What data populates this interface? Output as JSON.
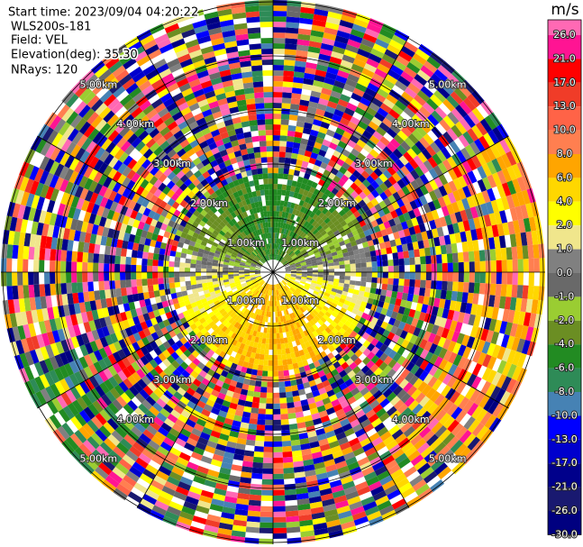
{
  "header": {
    "start_time": "Start time: 2023/09/04 04:20:22",
    "instrument": "WLS200s-181",
    "field": "Field: VEL",
    "elevation": "Elevation(deg): 35.30",
    "nrays": "NRays: 120"
  },
  "rings": [
    {
      "label": "1.00km"
    },
    {
      "label": "2.00km"
    },
    {
      "label": "3.00km"
    },
    {
      "label": "4.00km"
    },
    {
      "label": "5.00km"
    }
  ],
  "colorbar": {
    "unit": "m/s",
    "labels": [
      "26.0",
      "21.0",
      "17.0",
      "13.0",
      "10.0",
      "8.0",
      "6.0",
      "4.0",
      "2.0",
      "1.0",
      "0.0",
      "-1.0",
      "-2.0",
      "-4.0",
      "-6.0",
      "-8.0",
      "-10.0",
      "-13.0",
      "-17.0",
      "-21.0",
      "-26.0",
      "-30.0"
    ],
    "colors": [
      "#ff69b4",
      "#ff1493",
      "#ff0000",
      "#f03c28",
      "#ff6347",
      "#ff7f50",
      "#ffa500",
      "#ffd700",
      "#ffff00",
      "#f0e68c",
      "#808080",
      "#696969",
      "#9acd32",
      "#6b8e23",
      "#228b22",
      "#2e8b57",
      "#4682b4",
      "#0000ff",
      "#0000cd",
      "#00008b",
      "#191970",
      "#000080"
    ]
  }
}
